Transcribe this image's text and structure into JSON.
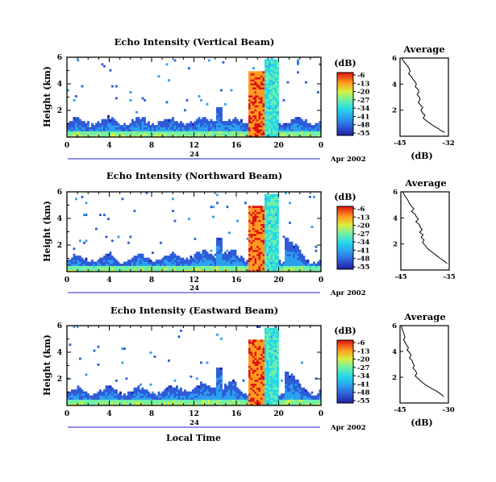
{
  "chart_data": [
    {
      "type": "heatmap",
      "title": "Echo Intensity (Vertical Beam)",
      "ylabel": "Height (km)",
      "x_ticks": [
        "0",
        "4",
        "8",
        "12",
        "16",
        "20",
        "0"
      ],
      "y_ticks": [
        "6",
        "4",
        "2"
      ],
      "xlim": [
        0,
        24
      ],
      "ylim": [
        0,
        6
      ],
      "date_label": "24",
      "date_suffix": "Apr 2002",
      "colorbar": {
        "label": "(dB)",
        "ticks": [
          "-6",
          "-13",
          "-20",
          "-27",
          "-34",
          "-41",
          "-48",
          "-55"
        ]
      },
      "profile": {
        "title": "Average",
        "xlabel": "(dB)",
        "x_ticks": [
          "-45",
          "-32"
        ],
        "xlim": [
          -45,
          -32
        ],
        "y_ticks": [
          "6",
          "4",
          "2"
        ],
        "points": [
          [
            -44.5,
            6.0
          ],
          [
            -44.2,
            5.8
          ],
          [
            -43.6,
            5.6
          ],
          [
            -43.0,
            5.4
          ],
          [
            -42.6,
            5.2
          ],
          [
            -42.3,
            5.0
          ],
          [
            -42.7,
            4.8
          ],
          [
            -42.0,
            4.6
          ],
          [
            -41.6,
            4.4
          ],
          [
            -41.0,
            4.2
          ],
          [
            -40.6,
            4.0
          ],
          [
            -40.9,
            3.8
          ],
          [
            -40.2,
            3.6
          ],
          [
            -39.9,
            3.4
          ],
          [
            -40.4,
            3.2
          ],
          [
            -39.8,
            3.0
          ],
          [
            -39.6,
            2.8
          ],
          [
            -40.1,
            2.6
          ],
          [
            -39.5,
            2.4
          ],
          [
            -38.9,
            2.2
          ],
          [
            -39.4,
            2.0
          ],
          [
            -39.0,
            1.8
          ],
          [
            -38.3,
            1.6
          ],
          [
            -38.8,
            1.4
          ],
          [
            -38.0,
            1.2
          ],
          [
            -37.0,
            1.0
          ],
          [
            -36.0,
            0.8
          ],
          [
            -34.8,
            0.6
          ],
          [
            -33.8,
            0.4
          ],
          [
            -33.0,
            0.3
          ]
        ]
      }
    },
    {
      "type": "heatmap",
      "title": "Echo Intensity (Northward Beam)",
      "ylabel": "Height (km)",
      "x_ticks": [
        "0",
        "4",
        "8",
        "12",
        "16",
        "20",
        "0"
      ],
      "y_ticks": [
        "6",
        "4",
        "2"
      ],
      "xlim": [
        0,
        24
      ],
      "ylim": [
        0,
        6
      ],
      "date_label": "24",
      "date_suffix": "Apr 2002",
      "colorbar": {
        "label": "(dB)",
        "ticks": [
          "-6",
          "-13",
          "-20",
          "-27",
          "-34",
          "-41",
          "-48",
          "-55"
        ]
      },
      "profile": {
        "title": "Average",
        "xlabel": "",
        "x_ticks": [
          "-45",
          "-35"
        ],
        "xlim": [
          -45,
          -35
        ],
        "y_ticks": [
          "6",
          "4",
          "2"
        ],
        "points": [
          [
            -44.6,
            6.0
          ],
          [
            -44.2,
            5.7
          ],
          [
            -43.6,
            5.4
          ],
          [
            -43.2,
            5.1
          ],
          [
            -42.8,
            4.9
          ],
          [
            -42.3,
            4.7
          ],
          [
            -42.8,
            4.5
          ],
          [
            -42.1,
            4.3
          ],
          [
            -41.8,
            4.1
          ],
          [
            -41.4,
            3.9
          ],
          [
            -41.9,
            3.7
          ],
          [
            -41.2,
            3.5
          ],
          [
            -41.0,
            3.3
          ],
          [
            -40.6,
            3.1
          ],
          [
            -41.1,
            2.9
          ],
          [
            -40.4,
            2.7
          ],
          [
            -40.8,
            2.5
          ],
          [
            -40.2,
            2.3
          ],
          [
            -40.5,
            2.1
          ],
          [
            -40.0,
            1.9
          ],
          [
            -39.6,
            1.7
          ],
          [
            -39.0,
            1.5
          ],
          [
            -38.3,
            1.3
          ],
          [
            -37.6,
            1.1
          ],
          [
            -36.9,
            0.9
          ],
          [
            -36.1,
            0.7
          ],
          [
            -35.4,
            0.5
          ]
        ]
      }
    },
    {
      "type": "heatmap",
      "title": "Echo Intensity (Eastward Beam)",
      "ylabel": "Height (km)",
      "xlabel": "Local Time",
      "x_ticks": [
        "0",
        "4",
        "8",
        "12",
        "16",
        "20",
        "0"
      ],
      "y_ticks": [
        "6",
        "4",
        "2"
      ],
      "xlim": [
        0,
        24
      ],
      "ylim": [
        0,
        6
      ],
      "date_label": "24",
      "date_suffix": "Apr 2002",
      "colorbar": {
        "label": "(dB)",
        "ticks": [
          "-6",
          "-13",
          "-20",
          "-27",
          "-34",
          "-41",
          "-48",
          "-55"
        ]
      },
      "profile": {
        "title": "Average",
        "xlabel": "(dB)",
        "x_ticks": [
          "-45",
          "-30"
        ],
        "xlim": [
          -45,
          -30
        ],
        "y_ticks": [
          "6",
          "4",
          "2"
        ],
        "points": [
          [
            -44.6,
            6.0
          ],
          [
            -44.3,
            5.7
          ],
          [
            -43.8,
            5.4
          ],
          [
            -43.5,
            5.1
          ],
          [
            -43.9,
            4.9
          ],
          [
            -43.4,
            4.7
          ],
          [
            -43.0,
            4.5
          ],
          [
            -42.4,
            4.3
          ],
          [
            -42.8,
            4.1
          ],
          [
            -42.0,
            3.9
          ],
          [
            -41.6,
            3.7
          ],
          [
            -42.1,
            3.5
          ],
          [
            -41.3,
            3.3
          ],
          [
            -41.0,
            3.1
          ],
          [
            -40.6,
            2.9
          ],
          [
            -41.0,
            2.7
          ],
          [
            -40.2,
            2.5
          ],
          [
            -39.8,
            2.3
          ],
          [
            -40.3,
            2.1
          ],
          [
            -39.4,
            1.9
          ],
          [
            -38.6,
            1.7
          ],
          [
            -37.6,
            1.5
          ],
          [
            -36.4,
            1.3
          ],
          [
            -35.0,
            1.1
          ],
          [
            -33.6,
            0.9
          ],
          [
            -32.4,
            0.7
          ],
          [
            -31.5,
            0.5
          ]
        ]
      }
    }
  ]
}
